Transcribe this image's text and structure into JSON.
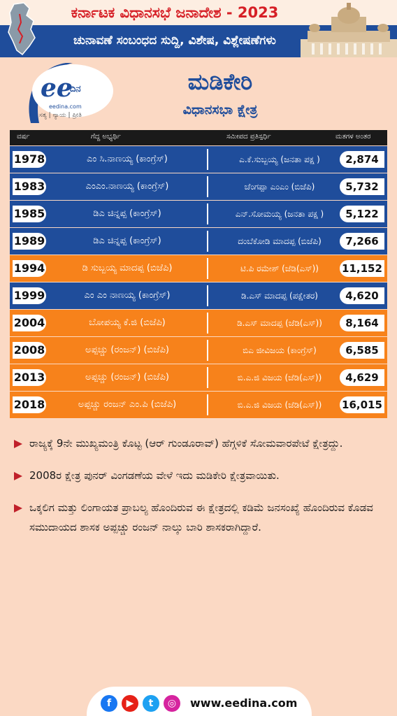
{
  "header": {
    "title": "ಕರ್ನಾಟಕ ವಿಧಾನಸಭೆ ಜನಾದೇಶ - 2023",
    "subtitle": "ಚುನಾವಣೆ ಸಂಬಂಧದ ಸುದ್ದಿ, ವಿಶೇಷ, ವಿಶ್ಲೇಷಣೆಗಳು"
  },
  "logo": {
    "name": "ದಿನ",
    "url": "eedina.com",
    "tagline": "ಸತ್ಯ | ನ್ಯಾಯ | ಪ್ರೀತಿ"
  },
  "constituency": "ಮಡಿಕೇರಿ",
  "assembly": "ವಿಧಾನಸಭಾ ಕ್ಷೇತ್ರ",
  "table": {
    "headers": {
      "year": "ವರ್ಷ",
      "winner": "ಗೆದ್ದ ಅಭ್ಯರ್ಥಿ",
      "runner": "ಸಮೀಪದ ಪ್ರತಿಸ್ಪರ್ಧಿ",
      "margin": "ಮತಗಳ ಅಂತರ"
    },
    "rows": [
      {
        "year": "1978",
        "winner": "ಎಂ ಸಿ.ನಾಣಯ್ಯ (ಕಾಂಗ್ರೆಸ್)",
        "runner": "ಎ.ಕೆ.ಸುಬ್ಬಯ್ಯ (ಜನತಾ ಪಕ್ಷ )",
        "margin": "2,874",
        "color": "#1f4d9b"
      },
      {
        "year": "1983",
        "winner": "ಎಂಎಂ.ನಾಣಯ್ಯ (ಕಾಂಗ್ರೆಸ್)",
        "runner": "ಚೆಂಗಪ್ಪಾ ಎಂಎಂ (ಬಿಜೆಪಿ)",
        "margin": "5,732",
        "color": "#1f4d9b"
      },
      {
        "year": "1985",
        "winner": "ಡಿಎ ಚಿನ್ನಪ್ಪ (ಕಾಂಗ್ರೆಸ್)",
        "runner": "ಎನ್.ಸೋಮಯ್ಯ (ಜನತಾ ಪಕ್ಷ )",
        "margin": "5,122",
        "color": "#1f4d9b"
      },
      {
        "year": "1989",
        "winner": "ಡಿಎ ಚಿನ್ನಪ್ಪ (ಕಾಂಗ್ರೆಸ್)",
        "runner": "ದಂಬೆಕೋಡಿ ಮಾದಪ್ಪ (ಬಿಜೆಪಿ)",
        "margin": "7,266",
        "color": "#1f4d9b"
      },
      {
        "year": "1994",
        "winner": "ಡಿ ಸುಬ್ಬಯ್ಯ ಮಾದಪ್ಪ (ಬಿಜೆಪಿ)",
        "runner": "ಟಿ.ಪಿ ರಮೇಶ್ (ಜೆಡಿ(ಎಸ್))",
        "margin": "11,152",
        "color": "#f7821b"
      },
      {
        "year": "1999",
        "winner": "ಎಂ ಎಂ ನಾಣಯ್ಯ (ಕಾಂಗ್ರೆಸ್)",
        "runner": "ಡಿ.ಎಸ್ ಮಾದಪ್ಪ (ಪಕ್ಷೇತರ)",
        "margin": "4,620",
        "color": "#1f4d9b"
      },
      {
        "year": "2004",
        "winner": "ಬೋಪಯ್ಯ ಕೆ.ಜಿ (ಬಿಜೆಪಿ)",
        "runner": "ಡಿ.ಎಸ್ ಮಾದಪ್ಪ (ಜೆಡಿ(ಎಸ್))",
        "margin": "8,164",
        "color": "#f7821b"
      },
      {
        "year": "2008",
        "winner": "ಅಪ್ಪಚ್ಚು (ರಂಜನ್) (ಬಿಜೆಪಿ)",
        "runner": "ಬಿಎ ಜೀವಿಜಯ (ಕಾಂಗ್ರೆಸ್)",
        "margin": "6,585",
        "color": "#f7821b"
      },
      {
        "year": "2013",
        "winner": "ಅಪ್ಪಚ್ಚು (ರಂಜನ್) (ಬಿಜೆಪಿ)",
        "runner": "ಬಿ.ಎ.ಜಿ ವಿಜಯ (ಜೆಡಿ(ಎಸ್))",
        "margin": "4,629",
        "color": "#f7821b"
      },
      {
        "year": "2018",
        "winner": "ಅಪ್ಪಚ್ಚು ರಂಜನ್ ಎಂ.ಪಿ (ಬಿಜೆಪಿ)",
        "runner": "ಬಿ.ಎ.ಜಿ ವಿಜಯ (ಜೆಡಿ(ಎಸ್))",
        "margin": "16,015",
        "color": "#f7821b"
      }
    ]
  },
  "bullets": [
    "ರಾಜ್ಯಕ್ಕೆ 9ನೇ ಮುಖ್ಯಮಂತ್ರಿ ಕೊಟ್ಟ (ಆರ್ ಗುಂಡೂರಾವ್) ಹೆಗ್ಗಳಿಕೆ ಸೋಮವಾರಪೇಟೆ ಕ್ಷೇತ್ರದ್ದು.",
    "2008ರ ಕ್ಷೇತ್ರ ಪುನರ್ ವಿಂಗಡಣೆಯ ವೇಳೆ ಇದು ಮಡಿಕೇರಿ ಕ್ಷೇತ್ರವಾಯಿತು.",
    "ಒಕ್ಕಲಿಗ ಮತ್ತು ಲಿಂಗಾಯತ ಪ್ರಾಬಲ್ಯ ಹೊಂದಿರುವ ಈ ಕ್ಷೇತ್ರದಲ್ಲಿ ಕಡಿಮೆ ಜನಸಂಖ್ಯೆ ಹೊಂದಿರುವ ಕೊಡವ ಸಮುದಾಯದ ಶಾಸಕ ಅಪ್ಪಚ್ಚು ರಂಜನ್ ನಾಲ್ಕು ಬಾರಿ ಶಾಸಕರಾಗಿದ್ದಾರೆ."
  ],
  "footer": {
    "facebook": "f",
    "youtube": "▶",
    "twitter": "t",
    "instagram": "◎",
    "url": "www.eedina.com"
  }
}
